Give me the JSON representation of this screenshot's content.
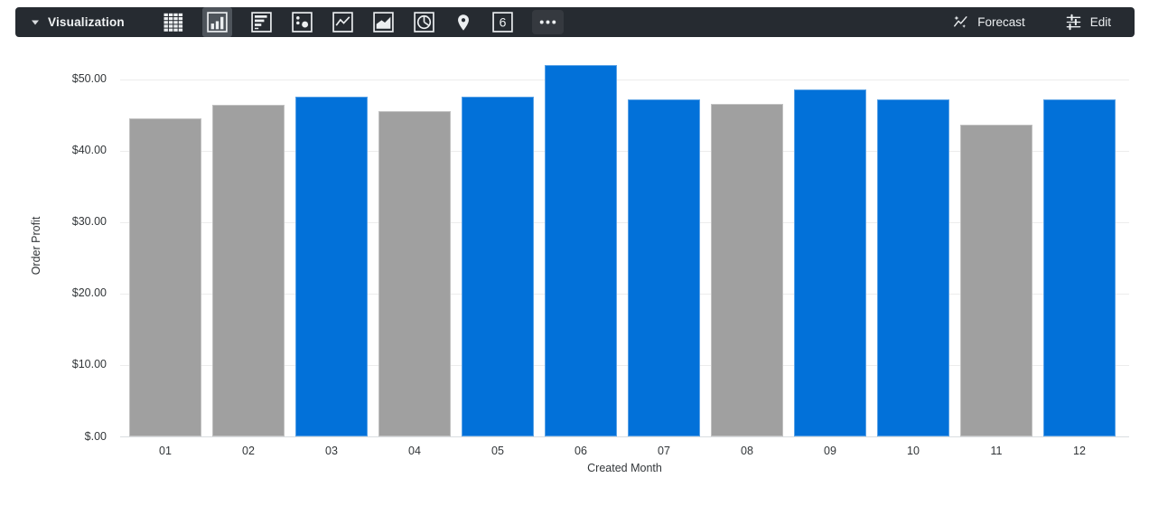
{
  "toolbar": {
    "title": "Visualization",
    "forecast_label": "Forecast",
    "edit_label": "Edit",
    "colors": {
      "background": "#262b31",
      "selected_tile": "#4e545b"
    },
    "icons": [
      {
        "name": "table-chart",
        "selected": false
      },
      {
        "name": "column-chart",
        "selected": true
      },
      {
        "name": "bar-chart",
        "selected": false
      },
      {
        "name": "scatter-chart",
        "selected": false
      },
      {
        "name": "line-chart",
        "selected": false
      },
      {
        "name": "area-chart",
        "selected": false
      },
      {
        "name": "pie-chart",
        "selected": false
      },
      {
        "name": "map-pin",
        "selected": false
      },
      {
        "name": "single-value",
        "selected": false,
        "glyph": "6"
      },
      {
        "name": "more-options",
        "selected": false
      }
    ]
  },
  "chart_data": {
    "type": "bar",
    "title": "",
    "xlabel": "Created Month",
    "ylabel": "Order Profit",
    "categories": [
      "01",
      "02",
      "03",
      "04",
      "05",
      "06",
      "07",
      "08",
      "09",
      "10",
      "11",
      "12"
    ],
    "values": [
      44.5,
      46.4,
      47.5,
      45.5,
      47.5,
      52.0,
      47.1,
      46.5,
      48.5,
      47.2,
      43.6,
      47.2
    ],
    "bar_colors": [
      "gray",
      "gray",
      "blue",
      "gray",
      "blue",
      "blue",
      "blue",
      "gray",
      "blue",
      "blue",
      "gray",
      "blue"
    ],
    "palette": {
      "blue": "#0271d9",
      "gray": "#a0a0a0"
    },
    "yticks": [
      {
        "value": 0,
        "label": "$.00"
      },
      {
        "value": 10,
        "label": "$10.00"
      },
      {
        "value": 20,
        "label": "$20.00"
      },
      {
        "value": 30,
        "label": "$30.00"
      },
      {
        "value": 40,
        "label": "$40.00"
      },
      {
        "value": 50,
        "label": "$50.00"
      }
    ],
    "ylim": [
      0,
      52.7
    ],
    "grid": true,
    "legend": "none"
  }
}
